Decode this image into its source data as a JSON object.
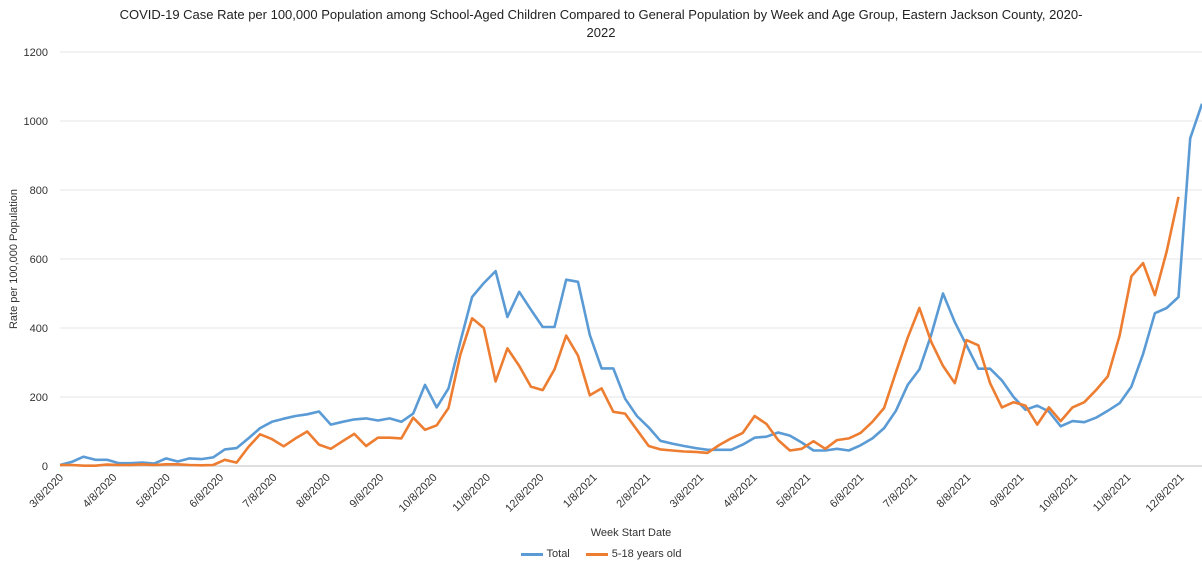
{
  "chart_data": {
    "type": "line",
    "title_line1": "COVID-19 Case Rate per 100,000 Population among School-Aged Children Compared to General Population by Week and Age Group, Eastern Jackson County, 2020-",
    "title_line2": "2022",
    "xlabel": "Week Start Date",
    "ylabel": "Rate per 100,000 Population",
    "ylim": [
      0,
      1200
    ],
    "yticks": [
      0,
      200,
      400,
      600,
      800,
      1000,
      1200
    ],
    "grid": true,
    "legend_position": "bottom",
    "x_tick_labels": [
      "3/8/2020",
      "4/8/2020",
      "5/8/2020",
      "6/8/2020",
      "7/8/2020",
      "8/8/2020",
      "9/8/2020",
      "10/8/2020",
      "11/8/2020",
      "12/8/2020",
      "1/8/2021",
      "2/8/2021",
      "3/8/2021",
      "4/8/2021",
      "5/8/2021",
      "6/8/2021",
      "7/8/2021",
      "8/8/2021",
      "9/8/2021",
      "10/8/2021",
      "11/8/2021",
      "12/8/2021"
    ],
    "series": [
      {
        "name": "Total",
        "color": "#5b9bd5",
        "values": [
          3,
          12,
          27,
          18,
          18,
          8,
          8,
          10,
          7,
          22,
          13,
          22,
          20,
          25,
          48,
          52,
          80,
          110,
          128,
          137,
          145,
          150,
          158,
          120,
          128,
          135,
          138,
          132,
          138,
          128,
          152,
          235,
          170,
          225,
          360,
          490,
          530,
          565,
          432,
          505,
          453,
          403,
          403,
          540,
          534,
          380,
          283,
          283,
          195,
          145,
          112,
          73,
          65,
          58,
          52,
          47,
          47,
          47,
          62,
          82,
          85,
          97,
          88,
          68,
          45,
          45,
          50,
          45,
          60,
          80,
          110,
          160,
          235,
          280,
          380,
          500,
          417,
          350,
          282,
          282,
          248,
          200,
          163,
          175,
          158,
          115,
          130,
          127,
          140,
          160,
          182,
          230,
          325,
          443,
          458,
          490,
          950,
          1050
        ]
      },
      {
        "name": "5-18 years old",
        "color": "#ed7d31",
        "values": [
          3,
          3,
          1,
          1,
          4,
          3,
          3,
          5,
          3,
          5,
          5,
          3,
          2,
          3,
          18,
          10,
          55,
          92,
          78,
          57,
          80,
          100,
          62,
          50,
          72,
          93,
          58,
          82,
          82,
          80,
          140,
          105,
          118,
          168,
          322,
          428,
          400,
          245,
          341,
          290,
          230,
          220,
          280,
          378,
          320,
          205,
          225,
          157,
          152,
          105,
          58,
          48,
          45,
          42,
          41,
          38,
          61,
          80,
          96,
          145,
          122,
          75,
          45,
          50,
          72,
          50,
          75,
          80,
          96,
          128,
          168,
          272,
          372,
          458,
          360,
          290,
          240,
          365,
          350,
          240,
          170,
          185,
          175,
          120,
          170,
          130,
          170,
          185,
          220,
          260,
          378,
          550,
          588,
          495,
          622,
          780
        ]
      }
    ]
  }
}
